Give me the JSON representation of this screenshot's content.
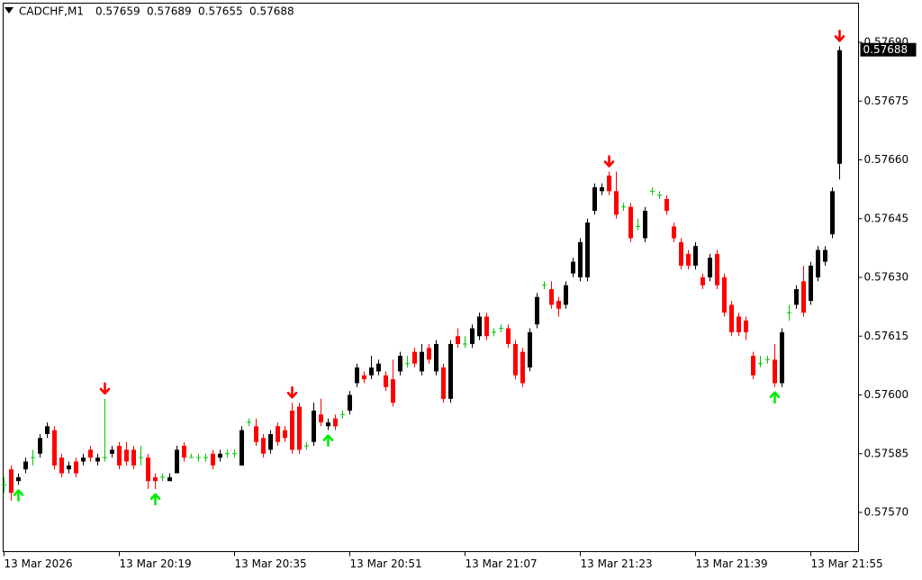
{
  "chart_data": {
    "type": "candlestick",
    "title": "CADCHF,M1",
    "categories": [
      "13 Mar 2026",
      null,
      null,
      null,
      null,
      null,
      null,
      null,
      null,
      null,
      null,
      null,
      null,
      null,
      null,
      null,
      "13 Mar 20:19",
      null,
      null,
      null,
      null,
      null,
      null,
      null,
      null,
      null,
      null,
      null,
      null,
      null,
      null,
      null,
      "13 Mar 20:35",
      null,
      null,
      null,
      null,
      null,
      null,
      null,
      null,
      null,
      null,
      null,
      null,
      null,
      null,
      null,
      "13 Mar 20:51",
      null,
      null,
      null,
      null,
      null,
      null,
      null,
      null,
      null,
      null,
      null,
      null,
      null,
      null,
      null,
      "13 Mar 21:07",
      null,
      null,
      null,
      null,
      null,
      null,
      null,
      null,
      null,
      null,
      null,
      null,
      null,
      null,
      null,
      "13 Mar 21:23",
      null,
      null,
      null,
      null,
      null,
      null,
      null,
      null,
      null,
      null,
      null,
      null,
      null,
      null,
      null,
      "13 Mar 21:39",
      null,
      null,
      null,
      null,
      null,
      null,
      null,
      null,
      null,
      null,
      null,
      null,
      null,
      null,
      null,
      "13 Mar 21:55",
      null,
      null,
      null,
      null
    ],
    "open": [
      0.57577,
      0.57581,
      0.57578,
      0.57581,
      0.57584,
      0.57585,
      0.5759,
      0.57591,
      0.57584,
      0.57581,
      0.57583,
      0.57583,
      0.57586,
      0.57583,
      0.57584,
      0.57585,
      0.57587,
      0.57586,
      0.57586,
      0.57584,
      0.57584,
      0.57579,
      0.57579,
      0.57578,
      0.5758,
      0.57587,
      0.57584,
      0.57584,
      0.57584,
      0.57585,
      0.57584,
      0.57585,
      0.57585,
      0.57582,
      0.57593,
      0.57592,
      0.57589,
      0.57586,
      0.57592,
      0.57591,
      0.57596,
      0.57597,
      0.57587,
      0.57588,
      0.57595,
      0.57592,
      0.57594,
      0.57595,
      0.57596,
      0.57603,
      0.57605,
      0.57605,
      0.57606,
      0.57605,
      0.57604,
      0.57606,
      0.57608,
      0.57611,
      0.57606,
      0.57612,
      0.57606,
      0.57607,
      0.57599,
      0.57615,
      0.57613,
      0.57613,
      0.57615,
      0.5762,
      0.57616,
      0.57617,
      0.57617,
      0.57613,
      0.57611,
      0.57607,
      0.57618,
      0.57628,
      0.57627,
      0.57624,
      0.57623,
      0.57631,
      0.5763,
      0.5763,
      0.57647,
      0.57652,
      0.57656,
      0.57652,
      0.57648,
      0.57648,
      0.57643,
      0.5764,
      0.57652,
      0.57651,
      0.5765,
      0.57643,
      0.57639,
      0.57636,
      0.57633,
      0.5763,
      0.5763,
      0.57636,
      0.5763,
      0.57623,
      0.5762,
      0.57619,
      0.5761,
      0.57608,
      0.57609,
      0.57609,
      0.57603,
      0.57621,
      0.57623,
      0.57629,
      0.57624,
      0.5763,
      0.57634,
      0.57641,
      0.57659
    ],
    "high": [
      0.57579,
      0.57582,
      0.5758,
      0.57584,
      0.57586,
      0.5759,
      0.57593,
      0.57592,
      0.57585,
      0.57583,
      0.57584,
      0.57585,
      0.57587,
      0.57585,
      0.57599,
      0.57587,
      0.57588,
      0.57588,
      0.57587,
      0.57587,
      0.57585,
      0.5758,
      0.5758,
      0.5758,
      0.57587,
      0.57588,
      0.57585,
      0.57585,
      0.57585,
      0.57586,
      0.57586,
      0.57586,
      0.57586,
      0.57592,
      0.57594,
      0.57594,
      0.5759,
      0.57591,
      0.57593,
      0.57592,
      0.57598,
      0.57598,
      0.57588,
      0.57598,
      0.57599,
      0.57594,
      0.57595,
      0.57596,
      0.57601,
      0.57608,
      0.57606,
      0.5761,
      0.57609,
      0.57606,
      0.57609,
      0.57611,
      0.5761,
      0.57612,
      0.57613,
      0.57613,
      0.57614,
      0.57608,
      0.57614,
      0.57617,
      0.57615,
      0.57618,
      0.57621,
      0.57621,
      0.57617,
      0.57618,
      0.57618,
      0.57614,
      0.57612,
      0.57617,
      0.57626,
      0.57629,
      0.57629,
      0.57625,
      0.57629,
      0.57635,
      0.5764,
      0.57645,
      0.57654,
      0.57654,
      0.57657,
      0.57657,
      0.57649,
      0.57649,
      0.57645,
      0.57648,
      0.57653,
      0.57652,
      0.57651,
      0.57644,
      0.5764,
      0.57637,
      0.57639,
      0.57631,
      0.57636,
      0.57637,
      0.57631,
      0.57624,
      0.57621,
      0.5762,
      0.57611,
      0.5761,
      0.5761,
      0.57613,
      0.57617,
      0.57623,
      0.57628,
      0.57633,
      0.57634,
      0.57638,
      0.57638,
      0.57653,
      0.57689
    ],
    "low": [
      0.57575,
      0.57573,
      0.57577,
      0.5758,
      0.57582,
      0.57584,
      0.57589,
      0.57581,
      0.57579,
      0.5758,
      0.57579,
      0.57582,
      0.57583,
      0.57582,
      0.57583,
      0.57584,
      0.57581,
      0.57582,
      0.57581,
      0.57582,
      0.57576,
      0.57576,
      0.57578,
      0.57578,
      0.5758,
      0.57583,
      0.57584,
      0.57583,
      0.57583,
      0.57581,
      0.57583,
      0.57584,
      0.57584,
      0.57582,
      0.57592,
      0.57587,
      0.57584,
      0.57585,
      0.57587,
      0.57588,
      0.57585,
      0.57585,
      0.57586,
      0.57587,
      0.57592,
      0.57591,
      0.57591,
      0.57594,
      0.57595,
      0.57602,
      0.57603,
      0.57604,
      0.57605,
      0.57601,
      0.57597,
      0.57605,
      0.57607,
      0.57607,
      0.57605,
      0.57608,
      0.57605,
      0.57598,
      0.57598,
      0.57612,
      0.57612,
      0.57612,
      0.57614,
      0.57614,
      0.57615,
      0.57616,
      0.57612,
      0.57604,
      0.57602,
      0.57606,
      0.57617,
      0.57627,
      0.57622,
      0.5762,
      0.57622,
      0.5763,
      0.57629,
      0.57629,
      0.57646,
      0.57651,
      0.57651,
      0.57645,
      0.57647,
      0.57639,
      0.57642,
      0.57639,
      0.57651,
      0.5765,
      0.57646,
      0.57639,
      0.57632,
      0.57632,
      0.57632,
      0.57627,
      0.57629,
      0.57627,
      0.5762,
      0.57615,
      0.57615,
      0.57614,
      0.57604,
      0.57607,
      0.57608,
      0.57602,
      0.57602,
      0.57619,
      0.57622,
      0.5762,
      0.57623,
      0.57629,
      0.57633,
      0.5764,
      0.57655
    ],
    "close": [
      0.57577,
      0.57575,
      0.57579,
      0.57583,
      0.57584,
      0.57589,
      0.57592,
      0.57582,
      0.5758,
      0.57582,
      0.5758,
      0.57584,
      0.57584,
      0.57584,
      0.57584,
      0.57586,
      0.57582,
      0.57583,
      0.57582,
      0.57584,
      0.57578,
      0.57578,
      0.57579,
      0.57579,
      0.57586,
      0.57584,
      0.57584,
      0.57584,
      0.57584,
      0.57582,
      0.57585,
      0.57585,
      0.57585,
      0.57591,
      0.57593,
      0.57588,
      0.57585,
      0.5759,
      0.57588,
      0.57589,
      0.57586,
      0.57586,
      0.57587,
      0.57596,
      0.57593,
      0.57593,
      0.57592,
      0.57595,
      0.576,
      0.57607,
      0.57604,
      0.57607,
      0.57608,
      0.57602,
      0.57598,
      0.5761,
      0.57608,
      0.57608,
      0.57611,
      0.57609,
      0.57613,
      0.57599,
      0.57613,
      0.57613,
      0.57613,
      0.57617,
      0.5762,
      0.57615,
      0.57616,
      0.57617,
      0.57613,
      0.57605,
      0.57603,
      0.57616,
      0.57625,
      0.57628,
      0.57623,
      0.57622,
      0.57628,
      0.57634,
      0.57639,
      0.57644,
      0.57653,
      0.57653,
      0.57652,
      0.57646,
      0.57648,
      0.5764,
      0.57643,
      0.57647,
      0.57652,
      0.57651,
      0.57647,
      0.5764,
      0.57633,
      0.57633,
      0.57638,
      0.57628,
      0.57635,
      0.57628,
      0.57621,
      0.57616,
      0.57616,
      0.57616,
      0.57605,
      0.57608,
      0.57609,
      0.57603,
      0.57616,
      0.57621,
      0.57627,
      0.57621,
      0.57633,
      0.57637,
      0.57637,
      0.57652,
      0.57688
    ],
    "ylim": [
      0.5756,
      0.577
    ],
    "yticks": [
      {
        "value": 0.5757,
        "label": "0.57570"
      },
      0.57585,
      {
        "value": 0.576,
        "label": "0.57600"
      },
      0.57615,
      {
        "value": 0.5763,
        "label": "0.57630"
      },
      0.57645,
      {
        "value": 0.5766,
        "label": "0.57660"
      },
      0.57675,
      {
        "value": 0.5769,
        "label": "0.57690"
      }
    ],
    "last_price": 0.57688,
    "buy_arrows": [
      2,
      21,
      45,
      107
    ],
    "sell_arrows": [
      14,
      40,
      84,
      116
    ],
    "up_color": "#000000",
    "down_color": "#ff0000",
    "doji_color": "#00c800",
    "buy_arrow_color": "#00ee00",
    "sell_arrow_color": "#ff0000"
  }
}
